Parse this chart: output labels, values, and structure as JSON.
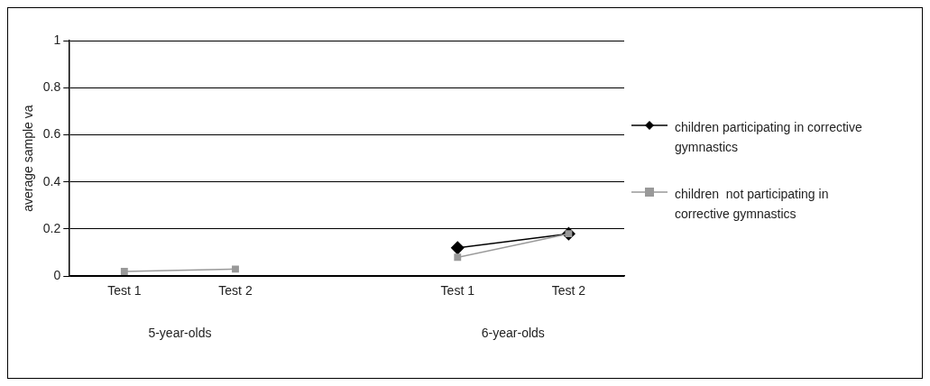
{
  "chart_data": {
    "type": "line",
    "ylabel": "average sample va",
    "categories": [
      "Test 1",
      "Test 2",
      null,
      "Test 1",
      "Test 2"
    ],
    "series": [
      {
        "name": "children participating in corrective gymnastics",
        "color": "#000000",
        "marker": "diamond",
        "values": [
          null,
          null,
          null,
          0.12,
          0.18
        ]
      },
      {
        "name": "children  not participating in corrective gymnastics",
        "color": "#999999",
        "marker": "square",
        "values": [
          0.02,
          0.03,
          null,
          0.08,
          0.18
        ]
      }
    ],
    "ylim": [
      0,
      1
    ],
    "yticks": [
      0,
      0.2,
      0.4,
      0.6,
      0.8,
      1
    ],
    "grid": "y",
    "legend": "right",
    "line_style": "solid",
    "annotations": [
      "5-year-olds",
      "6-year-olds"
    ]
  }
}
